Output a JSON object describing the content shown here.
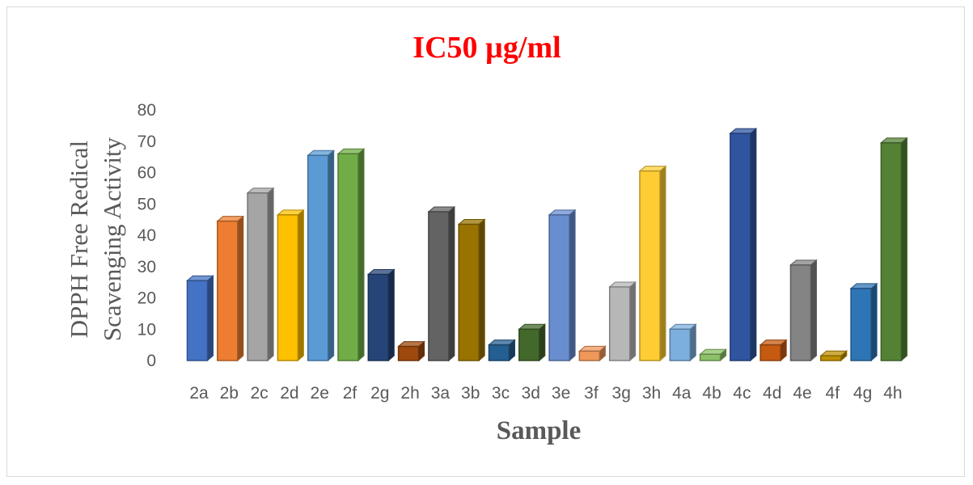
{
  "chart_data": {
    "type": "bar",
    "style": "3d-column",
    "title": "IC50 µg/ml",
    "xlabel": "Sample",
    "ylabel_lines": [
      "DPPH Free Redical",
      "Scavenging Activity"
    ],
    "ylim": [
      0,
      80
    ],
    "yticks": [
      0,
      10,
      20,
      30,
      40,
      50,
      60,
      70,
      80
    ],
    "grid": false,
    "legend": "none",
    "categories": [
      "2a",
      "2b",
      "2c",
      "2d",
      "2e",
      "2f",
      "2g",
      "2h",
      "3a",
      "3b",
      "3c",
      "3d",
      "3e",
      "3f",
      "3g",
      "3h",
      "4a",
      "4b",
      "4c",
      "4d",
      "4e",
      "4f",
      "4g",
      "4h"
    ],
    "values": [
      25.5,
      44.5,
      53.5,
      46.5,
      65.5,
      66,
      27.5,
      4.5,
      47.5,
      43.5,
      5,
      10,
      46.5,
      3,
      23.5,
      60.5,
      10,
      2,
      72.5,
      5,
      30.5,
      1.5,
      23,
      69.5
    ],
    "colors": [
      "#4472c4",
      "#ed7d31",
      "#a5a5a5",
      "#ffc000",
      "#5b9bd5",
      "#70ad47",
      "#264478",
      "#9e480e",
      "#636363",
      "#997300",
      "#255e91",
      "#43682b",
      "#698ed0",
      "#f1975a",
      "#b7b7b7",
      "#ffcd33",
      "#7cafdd",
      "#8cc168",
      "#2f55a0",
      "#c55a11",
      "#848484",
      "#bf9000",
      "#2e75b6",
      "#548235"
    ]
  }
}
